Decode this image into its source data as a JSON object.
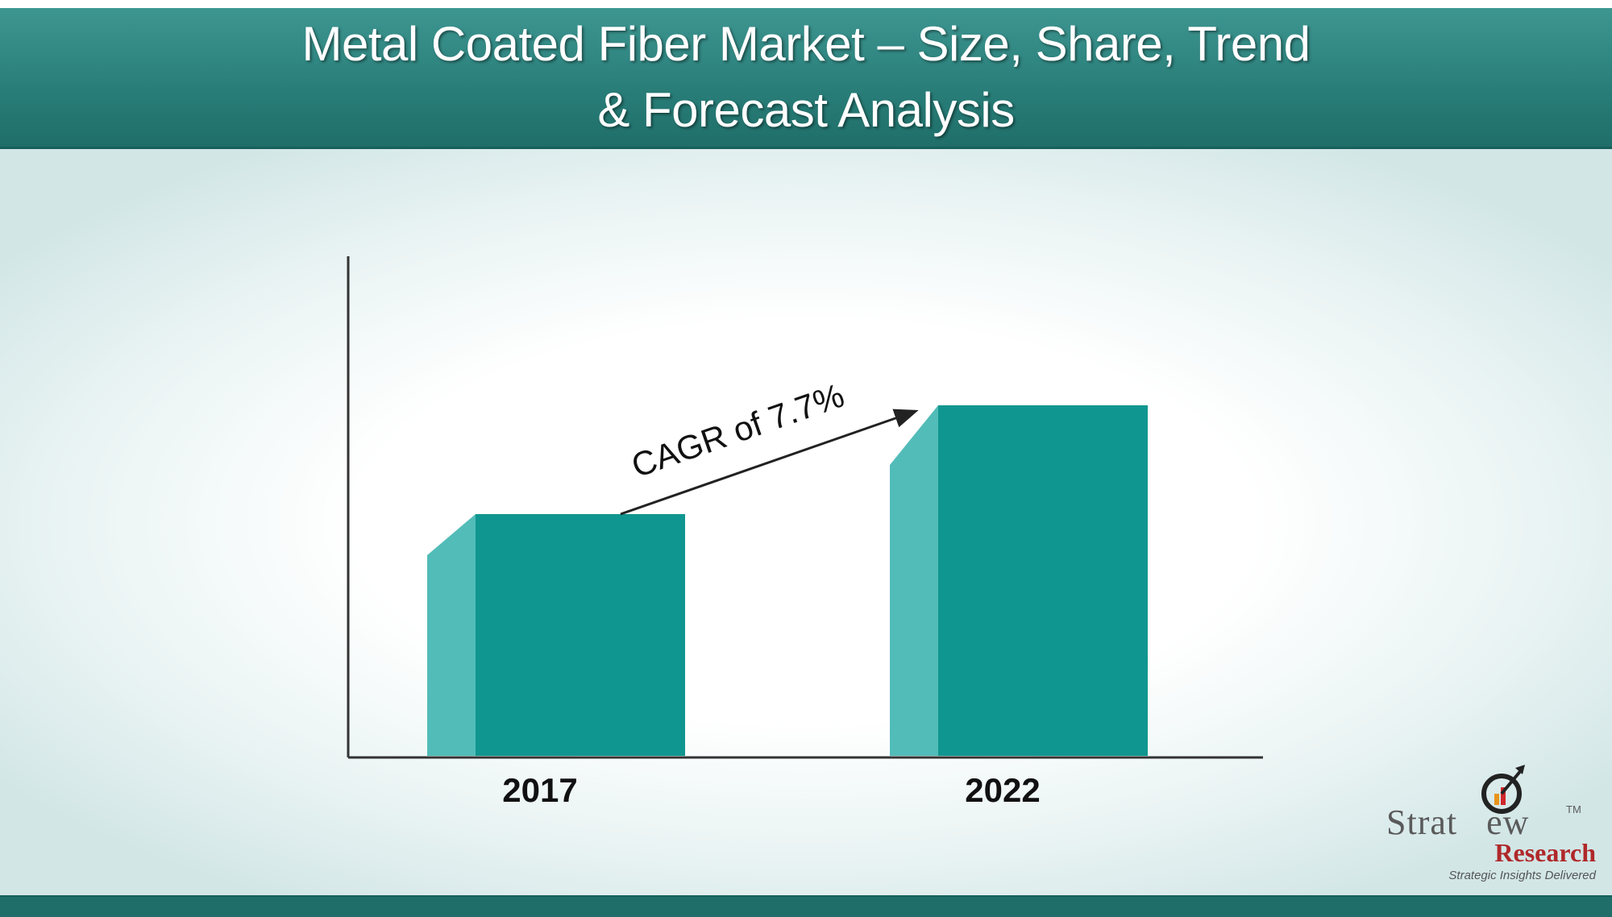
{
  "header": {
    "title_line1": "Metal Coated Fiber Market – Size, Share, Trend",
    "title_line2": "& Forecast Analysis"
  },
  "colors": {
    "header_teal": "#2a7f7a",
    "bar_front": "#109690",
    "bar_side": "#52bcb8",
    "axis": "#333333"
  },
  "chart_data": {
    "type": "bar",
    "categories": [
      "2017",
      "2022"
    ],
    "values": [
      1.0,
      1.45
    ],
    "annotation": "CAGR of 7.7%",
    "grid": false,
    "legend": "none"
  },
  "logo": {
    "word_prefix": "Strat",
    "word_suffix": "ew",
    "tm": "TM",
    "research": "Research",
    "tagline": "Strategic Insights Delivered",
    "icon": "target-chart-arrow-icon"
  }
}
